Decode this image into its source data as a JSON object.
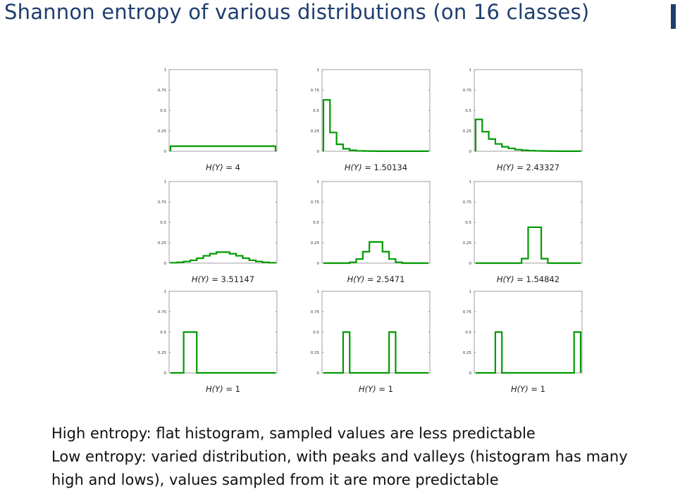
{
  "slide": {
    "title": "Shannon entropy of various distributions (on 16 classes)",
    "accent_color": "#1f3e6e"
  },
  "caption": {
    "lines": [
      "High entropy: flat histogram, sampled values are less predictable",
      "Low entropy: varied distribution, with peaks and valleys (histogram has many",
      "high and lows), values sampled from it are more predictable"
    ]
  },
  "chart_data": [
    {
      "type": "bar",
      "x": [
        1,
        2,
        3,
        4,
        5,
        6,
        7,
        8,
        9,
        10,
        11,
        12,
        13,
        14,
        15,
        16
      ],
      "values": [
        0.0625,
        0.0625,
        0.0625,
        0.0625,
        0.0625,
        0.0625,
        0.0625,
        0.0625,
        0.0625,
        0.0625,
        0.0625,
        0.0625,
        0.0625,
        0.0625,
        0.0625,
        0.0625
      ],
      "xlabel_prefix": "H(Y)",
      "xlabel_value": "4",
      "ylim": [
        0,
        1
      ],
      "yticks": [
        "0",
        "0.25",
        "0.5",
        "0.75",
        "1"
      ],
      "color": "#009900"
    },
    {
      "type": "bar",
      "x": [
        1,
        2,
        3,
        4,
        5,
        6,
        7,
        8,
        9,
        10,
        11,
        12,
        13,
        14,
        15,
        16
      ],
      "values": [
        0.63,
        0.23,
        0.085,
        0.03,
        0.012,
        0.005,
        0.003,
        0.002,
        0.001,
        0.001,
        0.001,
        0.001,
        0.001,
        0.001,
        0.001,
        0.001
      ],
      "xlabel_prefix": "H(Y)",
      "xlabel_value": "1.50134",
      "ylim": [
        0,
        1
      ],
      "yticks": [
        "0",
        "0.25",
        "0.5",
        "0.75",
        "1"
      ],
      "color": "#009900"
    },
    {
      "type": "bar",
      "x": [
        1,
        2,
        3,
        4,
        5,
        6,
        7,
        8,
        9,
        10,
        11,
        12,
        13,
        14,
        15,
        16
      ],
      "values": [
        0.39,
        0.24,
        0.15,
        0.09,
        0.055,
        0.035,
        0.02,
        0.012,
        0.008,
        0.005,
        0.003,
        0.002,
        0.001,
        0.001,
        0.001,
        0.001
      ],
      "xlabel_prefix": "H(Y)",
      "xlabel_value": "2.43327",
      "ylim": [
        0,
        1
      ],
      "yticks": [
        "0",
        "0.25",
        "0.5",
        "0.75",
        "1"
      ],
      "color": "#009900"
    },
    {
      "type": "bar",
      "x": [
        1,
        2,
        3,
        4,
        5,
        6,
        7,
        8,
        9,
        10,
        11,
        12,
        13,
        14,
        15,
        16
      ],
      "values": [
        0.005,
        0.01,
        0.02,
        0.035,
        0.06,
        0.09,
        0.115,
        0.135,
        0.135,
        0.115,
        0.09,
        0.06,
        0.035,
        0.02,
        0.01,
        0.005
      ],
      "xlabel_prefix": "H(Y)",
      "xlabel_value": "3.51147",
      "ylim": [
        0,
        1
      ],
      "yticks": [
        "0",
        "0.25",
        "0.5",
        "0.75",
        "1"
      ],
      "color": "#009900"
    },
    {
      "type": "bar",
      "x": [
        1,
        2,
        3,
        4,
        5,
        6,
        7,
        8,
        9,
        10,
        11,
        12,
        13,
        14,
        15,
        16
      ],
      "values": [
        0,
        0,
        0,
        0,
        0.01,
        0.05,
        0.14,
        0.26,
        0.26,
        0.14,
        0.05,
        0.01,
        0,
        0,
        0,
        0
      ],
      "xlabel_prefix": "H(Y)",
      "xlabel_value": "2.5471",
      "ylim": [
        0,
        1
      ],
      "yticks": [
        "0",
        "0.25",
        "0.5",
        "0.75",
        "1"
      ],
      "color": "#009900"
    },
    {
      "type": "bar",
      "x": [
        1,
        2,
        3,
        4,
        5,
        6,
        7,
        8,
        9,
        10,
        11,
        12,
        13,
        14,
        15,
        16
      ],
      "values": [
        0,
        0,
        0,
        0,
        0,
        0,
        0,
        0.055,
        0.44,
        0.44,
        0.055,
        0,
        0,
        0,
        0,
        0
      ],
      "xlabel_prefix": "H(Y)",
      "xlabel_value": "1.54842",
      "ylim": [
        0,
        1
      ],
      "yticks": [
        "0",
        "0.25",
        "0.5",
        "0.75",
        "1"
      ],
      "color": "#009900"
    },
    {
      "type": "bar",
      "x": [
        1,
        2,
        3,
        4,
        5,
        6,
        7,
        8,
        9,
        10,
        11,
        12,
        13,
        14,
        15,
        16
      ],
      "values": [
        0,
        0,
        0.5,
        0.5,
        0,
        0,
        0,
        0,
        0,
        0,
        0,
        0,
        0,
        0,
        0,
        0
      ],
      "xlabel_prefix": "H(Y)",
      "xlabel_value": "1",
      "ylim": [
        0,
        1
      ],
      "yticks": [
        "0",
        "0.25",
        "0.5",
        "0.75",
        "1"
      ],
      "color": "#009900"
    },
    {
      "type": "bar",
      "x": [
        1,
        2,
        3,
        4,
        5,
        6,
        7,
        8,
        9,
        10,
        11,
        12,
        13,
        14,
        15,
        16
      ],
      "values": [
        0,
        0,
        0,
        0.5,
        0,
        0,
        0,
        0,
        0,
        0,
        0.5,
        0,
        0,
        0,
        0,
        0
      ],
      "xlabel_prefix": "H(Y)",
      "xlabel_value": "1",
      "ylim": [
        0,
        1
      ],
      "yticks": [
        "0",
        "0.25",
        "0.5",
        "0.75",
        "1"
      ],
      "color": "#009900"
    },
    {
      "type": "bar",
      "x": [
        1,
        2,
        3,
        4,
        5,
        6,
        7,
        8,
        9,
        10,
        11,
        12,
        13,
        14,
        15,
        16
      ],
      "values": [
        0,
        0,
        0,
        0.5,
        0,
        0,
        0,
        0,
        0,
        0,
        0,
        0,
        0,
        0,
        0,
        0.5
      ],
      "xlabel_prefix": "H(Y)",
      "xlabel_value": "1",
      "ylim": [
        0,
        1
      ],
      "yticks": [
        "0",
        "0.25",
        "0.5",
        "0.75",
        "1"
      ],
      "color": "#009900"
    }
  ]
}
